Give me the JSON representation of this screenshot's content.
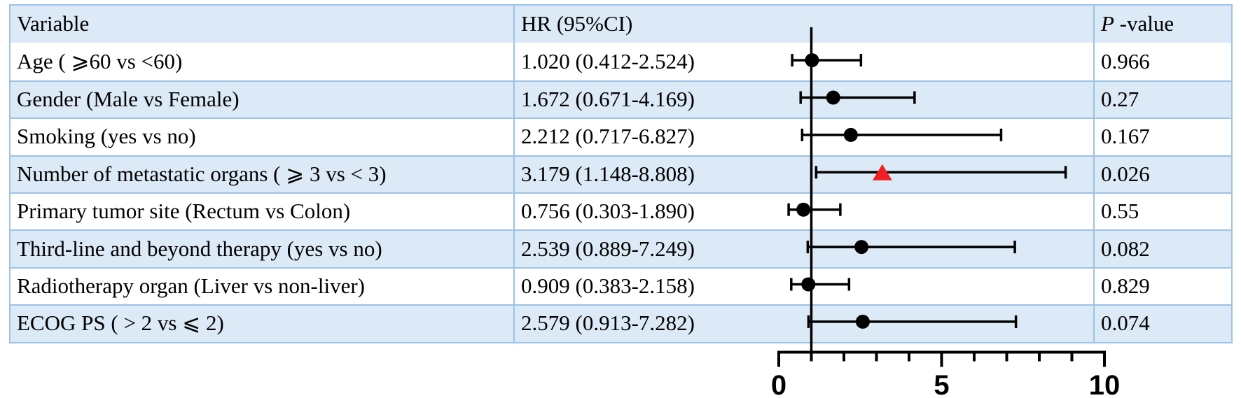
{
  "table": {
    "headers": {
      "variable": "Variable",
      "hr_ci": "HR (95%CI)",
      "p_italic": "P",
      "p_suffix": " -value"
    }
  },
  "chart_data": {
    "type": "scatter",
    "subtype": "forest-plot",
    "legend": "none",
    "grid": "off",
    "x_axis": {
      "min": 0,
      "max": 10,
      "tick_interval": 1,
      "labeled_ticks": [
        {
          "value": 0,
          "label": "0"
        },
        {
          "value": 5,
          "label": "5"
        },
        {
          "value": 10,
          "label": "10"
        }
      ],
      "reference_line_x": 1
    },
    "rows": [
      {
        "variable": "Age ( ⩾60 vs <60)",
        "hr": 1.02,
        "ci_low": 0.412,
        "ci_high": 2.524,
        "hr_text": "1.020 (0.412-2.524)",
        "p_value": "0.966",
        "marker": "circle",
        "marker_color": "#000000"
      },
      {
        "variable": "Gender (Male vs Female)",
        "hr": 1.672,
        "ci_low": 0.671,
        "ci_high": 4.169,
        "hr_text": "1.672 (0.671-4.169)",
        "p_value": "0.27",
        "marker": "circle",
        "marker_color": "#000000"
      },
      {
        "variable": "Smoking (yes vs no)",
        "hr": 2.212,
        "ci_low": 0.717,
        "ci_high": 6.827,
        "hr_text": "2.212 (0.717-6.827)",
        "p_value": "0.167",
        "marker": "circle",
        "marker_color": "#000000"
      },
      {
        "variable": "Number of metastatic organs ( ⩾ 3 vs < 3)",
        "hr": 3.179,
        "ci_low": 1.148,
        "ci_high": 8.808,
        "hr_text": "3.179 (1.148-8.808)",
        "p_value": "0.026",
        "marker": "triangle",
        "marker_color": "#ee2024"
      },
      {
        "variable": "Primary tumor site (Rectum vs Colon)",
        "hr": 0.756,
        "ci_low": 0.303,
        "ci_high": 1.89,
        "hr_text": "0.756 (0.303-1.890)",
        "p_value": "0.55",
        "marker": "circle",
        "marker_color": "#000000"
      },
      {
        "variable": "Third-line and beyond therapy (yes vs no)",
        "hr": 2.539,
        "ci_low": 0.889,
        "ci_high": 7.249,
        "hr_text": "2.539 (0.889-7.249)",
        "p_value": "0.082",
        "marker": "circle",
        "marker_color": "#000000"
      },
      {
        "variable": "Radiotherapy organ (Liver vs non-liver)",
        "hr": 0.909,
        "ci_low": 0.383,
        "ci_high": 2.158,
        "hr_text": "0.909 (0.383-2.158)",
        "p_value": "0.829",
        "marker": "circle",
        "marker_color": "#000000"
      },
      {
        "variable": "ECOG PS ( > 2 vs ⩽ 2)",
        "hr": 2.579,
        "ci_low": 0.913,
        "ci_high": 7.282,
        "hr_text": "2.579 (0.913-7.282)",
        "p_value": "0.074",
        "marker": "circle",
        "marker_color": "#000000"
      }
    ]
  },
  "colors": {
    "row_stripe": "#dce9f6",
    "table_border": "#9cc3e6",
    "axis": "#000000",
    "significant_marker": "#ee2024"
  }
}
